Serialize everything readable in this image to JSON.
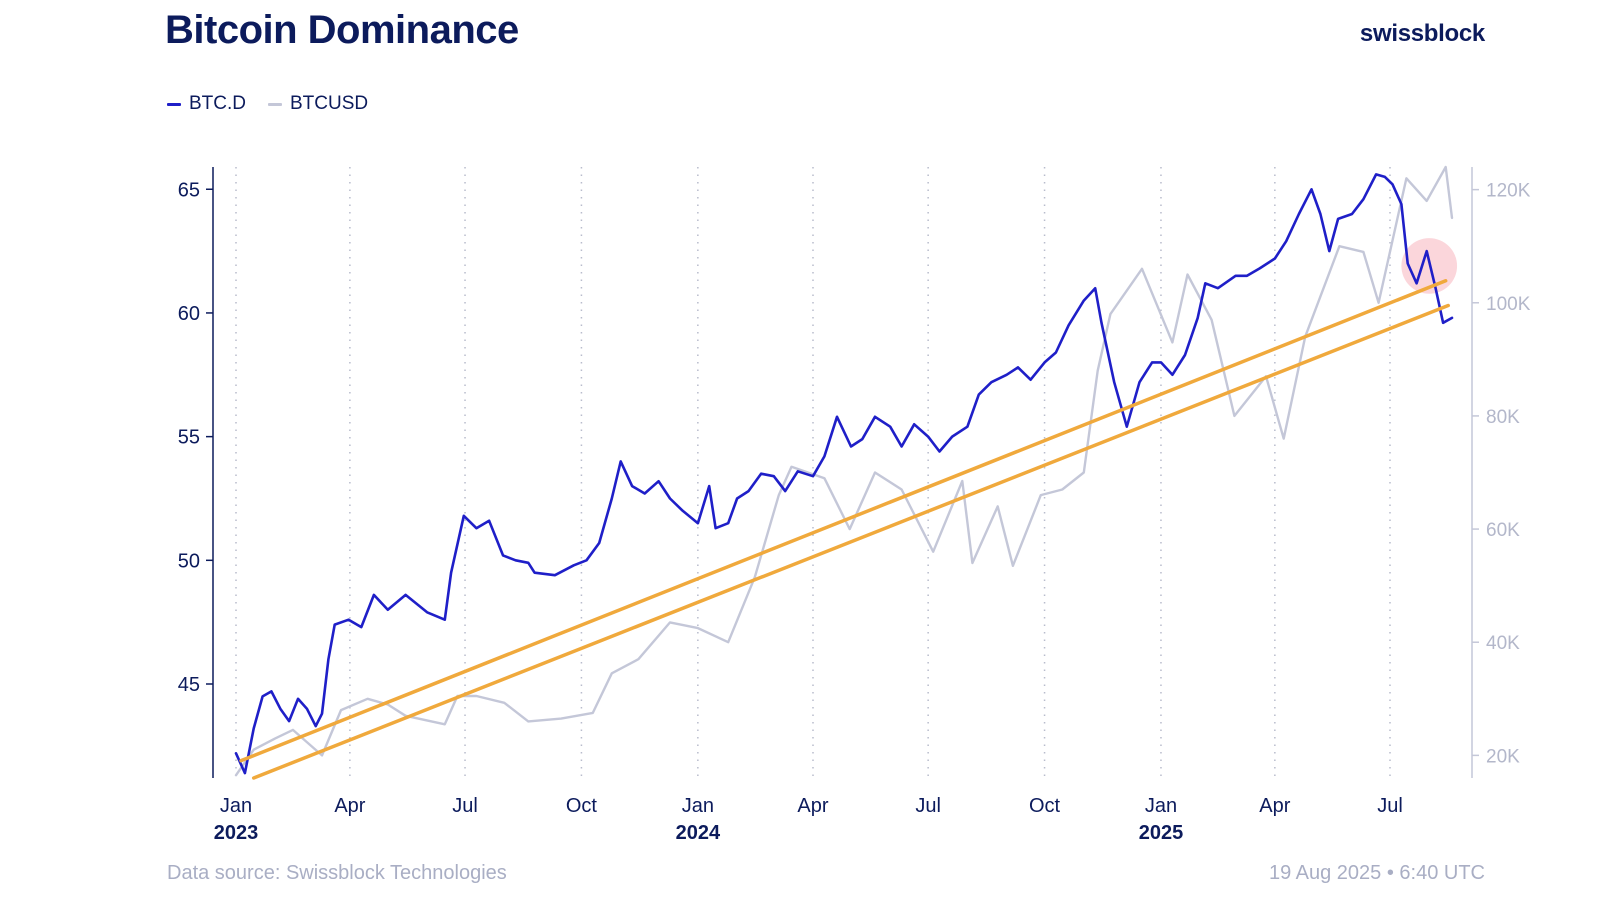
{
  "header": {
    "title": "Bitcoin Dominance",
    "brand": "swissblock"
  },
  "footer": {
    "source": "Data source: Swissblock Technologies",
    "timestamp": "19 Aug 2025 • 6:40 UTC"
  },
  "chart_data": {
    "type": "line",
    "title": "Bitcoin Dominance",
    "legend": {
      "placement": "top-left",
      "entries": [
        "BTC.D",
        "BTCUSD"
      ]
    },
    "grid": {
      "vertical_dotted": true,
      "horizontal": false
    },
    "x_axis": {
      "range": [
        "2023-01-01",
        "2025-08-19"
      ],
      "month_ticks": [
        {
          "date": "2023-01-01",
          "label": "Jan"
        },
        {
          "date": "2023-04-01",
          "label": "Apr"
        },
        {
          "date": "2023-07-01",
          "label": "Jul"
        },
        {
          "date": "2023-10-01",
          "label": "Oct"
        },
        {
          "date": "2024-01-01",
          "label": "Jan"
        },
        {
          "date": "2024-04-01",
          "label": "Apr"
        },
        {
          "date": "2024-07-01",
          "label": "Jul"
        },
        {
          "date": "2024-10-01",
          "label": "Oct"
        },
        {
          "date": "2025-01-01",
          "label": "Jan"
        },
        {
          "date": "2025-04-01",
          "label": "Apr"
        },
        {
          "date": "2025-07-01",
          "label": "Jul"
        }
      ],
      "year_ticks": [
        {
          "date": "2023-01-01",
          "label": "2023"
        },
        {
          "date": "2024-01-01",
          "label": "2024"
        },
        {
          "date": "2025-01-01",
          "label": "2025"
        }
      ]
    },
    "y_left": {
      "range": [
        41.2,
        65.9
      ],
      "ticks": [
        {
          "value": 45,
          "label": "45"
        },
        {
          "value": 50,
          "label": "50"
        },
        {
          "value": 55,
          "label": "55"
        },
        {
          "value": 60,
          "label": "60"
        },
        {
          "value": 65,
          "label": "65"
        }
      ]
    },
    "y_right": {
      "range": [
        16000,
        124000
      ],
      "ticks": [
        {
          "value": 20000,
          "label": "20K"
        },
        {
          "value": 40000,
          "label": "40K"
        },
        {
          "value": 60000,
          "label": "60K"
        },
        {
          "value": 80000,
          "label": "80K"
        },
        {
          "value": 100000,
          "label": "100K"
        },
        {
          "value": 120000,
          "label": "120K"
        }
      ]
    },
    "series": [
      {
        "name": "BTC.D",
        "axis": "left",
        "color": "#1f1fc8",
        "points": [
          [
            "2023-01-01",
            42.2
          ],
          [
            "2023-01-08",
            41.4
          ],
          [
            "2023-01-15",
            43.2
          ],
          [
            "2023-01-22",
            44.5
          ],
          [
            "2023-01-29",
            44.7
          ],
          [
            "2023-02-05",
            44.0
          ],
          [
            "2023-02-12",
            43.5
          ],
          [
            "2023-02-19",
            44.4
          ],
          [
            "2023-02-26",
            44.0
          ],
          [
            "2023-03-05",
            43.3
          ],
          [
            "2023-03-10",
            43.8
          ],
          [
            "2023-03-15",
            46.0
          ],
          [
            "2023-03-20",
            47.4
          ],
          [
            "2023-03-31",
            47.6
          ],
          [
            "2023-04-10",
            47.3
          ],
          [
            "2023-04-20",
            48.6
          ],
          [
            "2023-05-01",
            48.0
          ],
          [
            "2023-05-15",
            48.6
          ],
          [
            "2023-06-01",
            47.9
          ],
          [
            "2023-06-15",
            47.6
          ],
          [
            "2023-06-20",
            49.5
          ],
          [
            "2023-06-30",
            51.8
          ],
          [
            "2023-07-10",
            51.3
          ],
          [
            "2023-07-20",
            51.6
          ],
          [
            "2023-07-31",
            50.2
          ],
          [
            "2023-08-10",
            50.0
          ],
          [
            "2023-08-20",
            49.9
          ],
          [
            "2023-08-25",
            49.5
          ],
          [
            "2023-09-10",
            49.4
          ],
          [
            "2023-09-25",
            49.8
          ],
          [
            "2023-10-05",
            50.0
          ],
          [
            "2023-10-15",
            50.7
          ],
          [
            "2023-10-25",
            52.5
          ],
          [
            "2023-11-01",
            54.0
          ],
          [
            "2023-11-10",
            53.0
          ],
          [
            "2023-11-20",
            52.7
          ],
          [
            "2023-12-01",
            53.2
          ],
          [
            "2023-12-10",
            52.5
          ],
          [
            "2023-12-20",
            52.0
          ],
          [
            "2024-01-01",
            51.5
          ],
          [
            "2024-01-10",
            53.0
          ],
          [
            "2024-01-15",
            51.3
          ],
          [
            "2024-01-25",
            51.5
          ],
          [
            "2024-02-01",
            52.5
          ],
          [
            "2024-02-10",
            52.8
          ],
          [
            "2024-02-20",
            53.5
          ],
          [
            "2024-03-01",
            53.4
          ],
          [
            "2024-03-10",
            52.8
          ],
          [
            "2024-03-20",
            53.6
          ],
          [
            "2024-04-01",
            53.4
          ],
          [
            "2024-04-10",
            54.2
          ],
          [
            "2024-04-20",
            55.8
          ],
          [
            "2024-05-01",
            54.6
          ],
          [
            "2024-05-10",
            54.9
          ],
          [
            "2024-05-20",
            55.8
          ],
          [
            "2024-06-01",
            55.4
          ],
          [
            "2024-06-10",
            54.6
          ],
          [
            "2024-06-20",
            55.5
          ],
          [
            "2024-07-01",
            55.0
          ],
          [
            "2024-07-10",
            54.4
          ],
          [
            "2024-07-20",
            55.0
          ],
          [
            "2024-08-01",
            55.4
          ],
          [
            "2024-08-10",
            56.7
          ],
          [
            "2024-08-20",
            57.2
          ],
          [
            "2024-09-01",
            57.5
          ],
          [
            "2024-09-10",
            57.8
          ],
          [
            "2024-09-20",
            57.3
          ],
          [
            "2024-10-01",
            58.0
          ],
          [
            "2024-10-10",
            58.4
          ],
          [
            "2024-10-20",
            59.5
          ],
          [
            "2024-11-01",
            60.5
          ],
          [
            "2024-11-10",
            61.0
          ],
          [
            "2024-11-15",
            59.6
          ],
          [
            "2024-11-25",
            57.2
          ],
          [
            "2024-12-05",
            55.4
          ],
          [
            "2024-12-15",
            57.2
          ],
          [
            "2024-12-25",
            58.0
          ],
          [
            "2025-01-01",
            58.0
          ],
          [
            "2025-01-10",
            57.5
          ],
          [
            "2025-01-20",
            58.3
          ],
          [
            "2025-01-30",
            59.8
          ],
          [
            "2025-02-05",
            61.2
          ],
          [
            "2025-02-15",
            61.0
          ],
          [
            "2025-03-01",
            61.5
          ],
          [
            "2025-03-10",
            61.5
          ],
          [
            "2025-03-20",
            61.8
          ],
          [
            "2025-04-01",
            62.2
          ],
          [
            "2025-04-10",
            62.9
          ],
          [
            "2025-04-20",
            64.0
          ],
          [
            "2025-04-30",
            65.0
          ],
          [
            "2025-05-07",
            64.0
          ],
          [
            "2025-05-14",
            62.5
          ],
          [
            "2025-05-21",
            63.8
          ],
          [
            "2025-06-01",
            64.0
          ],
          [
            "2025-06-10",
            64.6
          ],
          [
            "2025-06-20",
            65.6
          ],
          [
            "2025-06-27",
            65.5
          ],
          [
            "2025-07-03",
            65.2
          ],
          [
            "2025-07-10",
            64.4
          ],
          [
            "2025-07-15",
            62.0
          ],
          [
            "2025-07-22",
            61.2
          ],
          [
            "2025-07-30",
            62.5
          ],
          [
            "2025-08-06",
            61.0
          ],
          [
            "2025-08-12",
            59.6
          ],
          [
            "2025-08-19",
            59.8
          ]
        ]
      },
      {
        "name": "BTCUSD",
        "axis": "right",
        "color": "#c4c7d8",
        "points": [
          [
            "2023-01-01",
            16500
          ],
          [
            "2023-01-15",
            21000
          ],
          [
            "2023-02-01",
            23000
          ],
          [
            "2023-02-15",
            24500
          ],
          [
            "2023-03-10",
            20000
          ],
          [
            "2023-03-25",
            28000
          ],
          [
            "2023-04-15",
            30000
          ],
          [
            "2023-05-01",
            29000
          ],
          [
            "2023-05-15",
            27000
          ],
          [
            "2023-06-15",
            25500
          ],
          [
            "2023-06-25",
            30500
          ],
          [
            "2023-07-10",
            30500
          ],
          [
            "2023-08-01",
            29300
          ],
          [
            "2023-08-20",
            26000
          ],
          [
            "2023-09-15",
            26500
          ],
          [
            "2023-10-10",
            27500
          ],
          [
            "2023-10-25",
            34500
          ],
          [
            "2023-11-15",
            37000
          ],
          [
            "2023-12-10",
            43500
          ],
          [
            "2024-01-01",
            42500
          ],
          [
            "2024-01-25",
            40000
          ],
          [
            "2024-02-15",
            51500
          ],
          [
            "2024-03-05",
            66000
          ],
          [
            "2024-03-15",
            71000
          ],
          [
            "2024-04-10",
            69000
          ],
          [
            "2024-04-30",
            60000
          ],
          [
            "2024-05-20",
            70000
          ],
          [
            "2024-06-10",
            67000
          ],
          [
            "2024-07-05",
            56000
          ],
          [
            "2024-07-28",
            68500
          ],
          [
            "2024-08-05",
            54000
          ],
          [
            "2024-08-25",
            64000
          ],
          [
            "2024-09-06",
            53500
          ],
          [
            "2024-09-28",
            66000
          ],
          [
            "2024-10-15",
            67000
          ],
          [
            "2024-11-01",
            70000
          ],
          [
            "2024-11-12",
            88000
          ],
          [
            "2024-11-22",
            98000
          ],
          [
            "2024-12-17",
            106000
          ],
          [
            "2025-01-10",
            93000
          ],
          [
            "2025-01-22",
            105000
          ],
          [
            "2025-02-10",
            97000
          ],
          [
            "2025-02-28",
            80000
          ],
          [
            "2025-03-25",
            87000
          ],
          [
            "2025-04-08",
            76000
          ],
          [
            "2025-04-25",
            94000
          ],
          [
            "2025-05-22",
            110000
          ],
          [
            "2025-06-10",
            109000
          ],
          [
            "2025-06-22",
            100000
          ],
          [
            "2025-07-14",
            122000
          ],
          [
            "2025-07-30",
            118000
          ],
          [
            "2025-08-14",
            124000
          ],
          [
            "2025-08-19",
            115000
          ]
        ]
      }
    ],
    "annotations": {
      "trend_channel": {
        "color": "#f0a93c",
        "upper": [
          [
            "2023-01-05",
            41.9
          ],
          [
            "2025-08-14",
            61.3
          ]
        ],
        "lower": [
          [
            "2023-01-15",
            41.2
          ],
          [
            "2025-08-16",
            60.3
          ]
        ]
      },
      "highlight": {
        "date": "2025-08-01",
        "value": 61.9,
        "radius_days": 22,
        "color": "#f8b4bd"
      }
    }
  }
}
